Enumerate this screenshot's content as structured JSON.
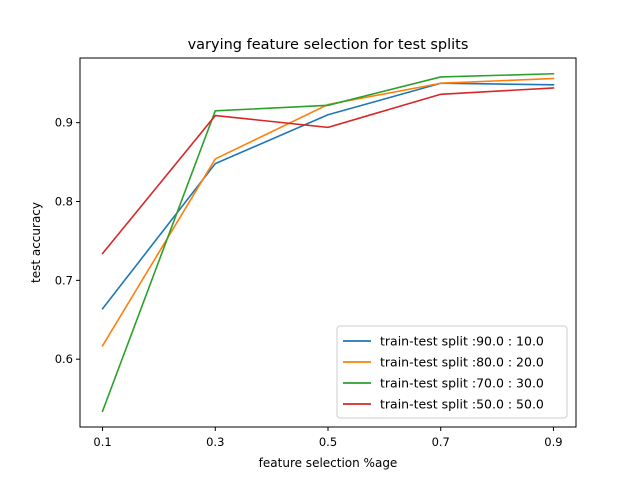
{
  "chart_data": {
    "type": "line",
    "title": "varying feature selection for test splits",
    "xlabel": "feature selection %age",
    "ylabel": "test accuracy",
    "x": [
      0.1,
      0.3,
      0.5,
      0.7,
      0.9
    ],
    "x_ticks": [
      0.1,
      0.3,
      0.5,
      0.7,
      0.9
    ],
    "x_tick_labels": [
      "0.1",
      "0.3",
      "0.5",
      "0.7",
      "0.9"
    ],
    "y_ticks": [
      0.6,
      0.7,
      0.8,
      0.9
    ],
    "y_tick_labels": [
      "0.6",
      "0.7",
      "0.8",
      "0.9"
    ],
    "xlim": [
      0.06,
      0.94
    ],
    "ylim": [
      0.514,
      0.982
    ],
    "grid": false,
    "legend_position": "bottom-right",
    "series": [
      {
        "name": "train-test split :90.0 : 10.0",
        "color": "#1f77b4",
        "values": [
          0.664,
          0.848,
          0.91,
          0.95,
          0.948
        ]
      },
      {
        "name": "train-test split :80.0 : 20.0",
        "color": "#ff7f0e",
        "values": [
          0.617,
          0.854,
          0.923,
          0.95,
          0.956
        ]
      },
      {
        "name": "train-test split :70.0 : 30.0",
        "color": "#2ca02c",
        "values": [
          0.534,
          0.915,
          0.922,
          0.958,
          0.962
        ]
      },
      {
        "name": "train-test split :50.0 : 50.0",
        "color": "#d62728",
        "values": [
          0.734,
          0.909,
          0.894,
          0.936,
          0.944
        ]
      }
    ]
  }
}
